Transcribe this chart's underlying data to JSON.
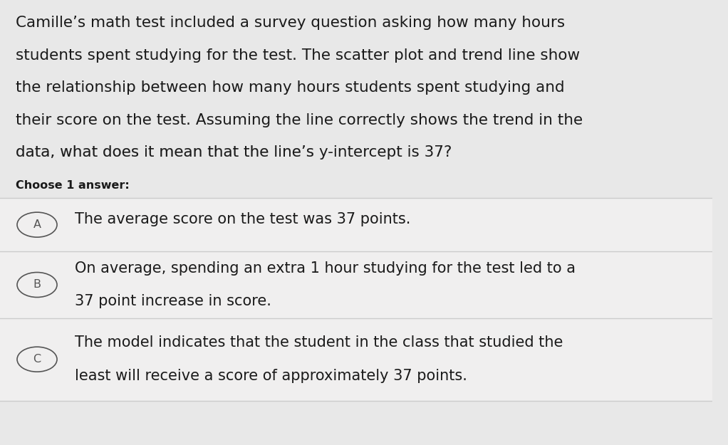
{
  "background_color": "#e8e8e8",
  "question_text_lines": [
    "Camille’s math test included a survey question asking how many hours",
    "students spent studying for the test. The scatter plot and trend line show",
    "the relationship between how many hours students spent studying and",
    "their score on the test. Assuming the line correctly shows the trend in the",
    "data, what does it mean that the line’s y-intercept is 37?"
  ],
  "choose_label": "Choose 1 answer:",
  "answers": [
    {
      "letter": "A",
      "lines": [
        "The average score on the test was 37 points."
      ]
    },
    {
      "letter": "B",
      "lines": [
        "On average, spending an extra 1 hour studying for the test led to a",
        "37 point increase in score."
      ]
    },
    {
      "letter": "C",
      "lines": [
        "The model indicates that the student in the class that studied the",
        "least will receive a score of approximately 37 points."
      ]
    }
  ],
  "question_font_size": 15.5,
  "choose_font_size": 11.5,
  "answer_font_size": 15.0,
  "letter_font_size": 11.5,
  "text_color": "#1a1a1a",
  "choose_color": "#1a1a1a",
  "circle_color": "#555555",
  "line_color": "#cccccc",
  "answer_bg_color": "#f0efef"
}
